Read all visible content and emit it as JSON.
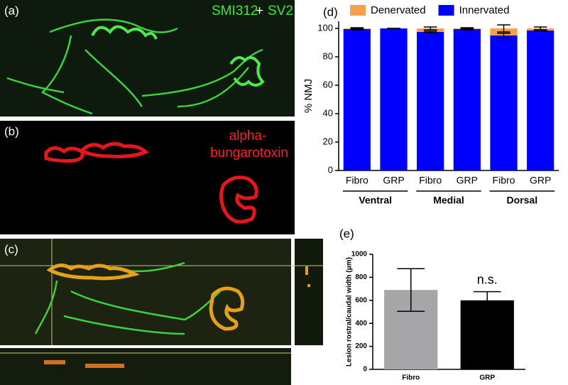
{
  "panels": {
    "a": "(a)",
    "b": "(b)",
    "c": "(c)",
    "d": "(d)",
    "e": "(e)"
  },
  "image_a": {
    "stain1": "SMI312",
    "plus": "+",
    "stain2": "SV2"
  },
  "image_b": {
    "line1": "alpha-",
    "line2": "bungarotoxin"
  },
  "chart_data": [
    {
      "type": "stacked_bar",
      "ylabel": "% NMJ",
      "categories": [
        "Fibro",
        "GRP",
        "Fibro",
        "GRP",
        "Fibro",
        "GRP"
      ],
      "groups": [
        "Ventral",
        "Medial",
        "Dorsal"
      ],
      "series": [
        {
          "name": "Innervated",
          "color": "#0000ff",
          "values": [
            99.5,
            100,
            97.5,
            99.5,
            95,
            98.5
          ],
          "errors": [
            0.5,
            0,
            0.5,
            0.5,
            1.5,
            0.5
          ]
        },
        {
          "name": "Denervated",
          "color": "#f7a04b",
          "values": [
            0.5,
            0,
            2.5,
            0.5,
            5,
            1.5
          ],
          "errors": [
            0.5,
            0,
            1,
            0.5,
            2.5,
            1
          ]
        }
      ],
      "ylim": [
        0,
        105
      ],
      "yticks": [
        0,
        20,
        40,
        60,
        80,
        100
      ],
      "legend": "top"
    },
    {
      "type": "bar",
      "ylabel": "Lesion rostral/caudal width (μm)",
      "categories": [
        "Fibro",
        "GRP"
      ],
      "values": [
        690,
        600
      ],
      "errors": [
        185,
        75
      ],
      "colors": [
        "#a6a6a8",
        "#000000"
      ],
      "annotation": "n.s.",
      "ylim": [
        0,
        1000
      ],
      "yticks": [
        0,
        200,
        400,
        600,
        800,
        1000
      ]
    }
  ]
}
